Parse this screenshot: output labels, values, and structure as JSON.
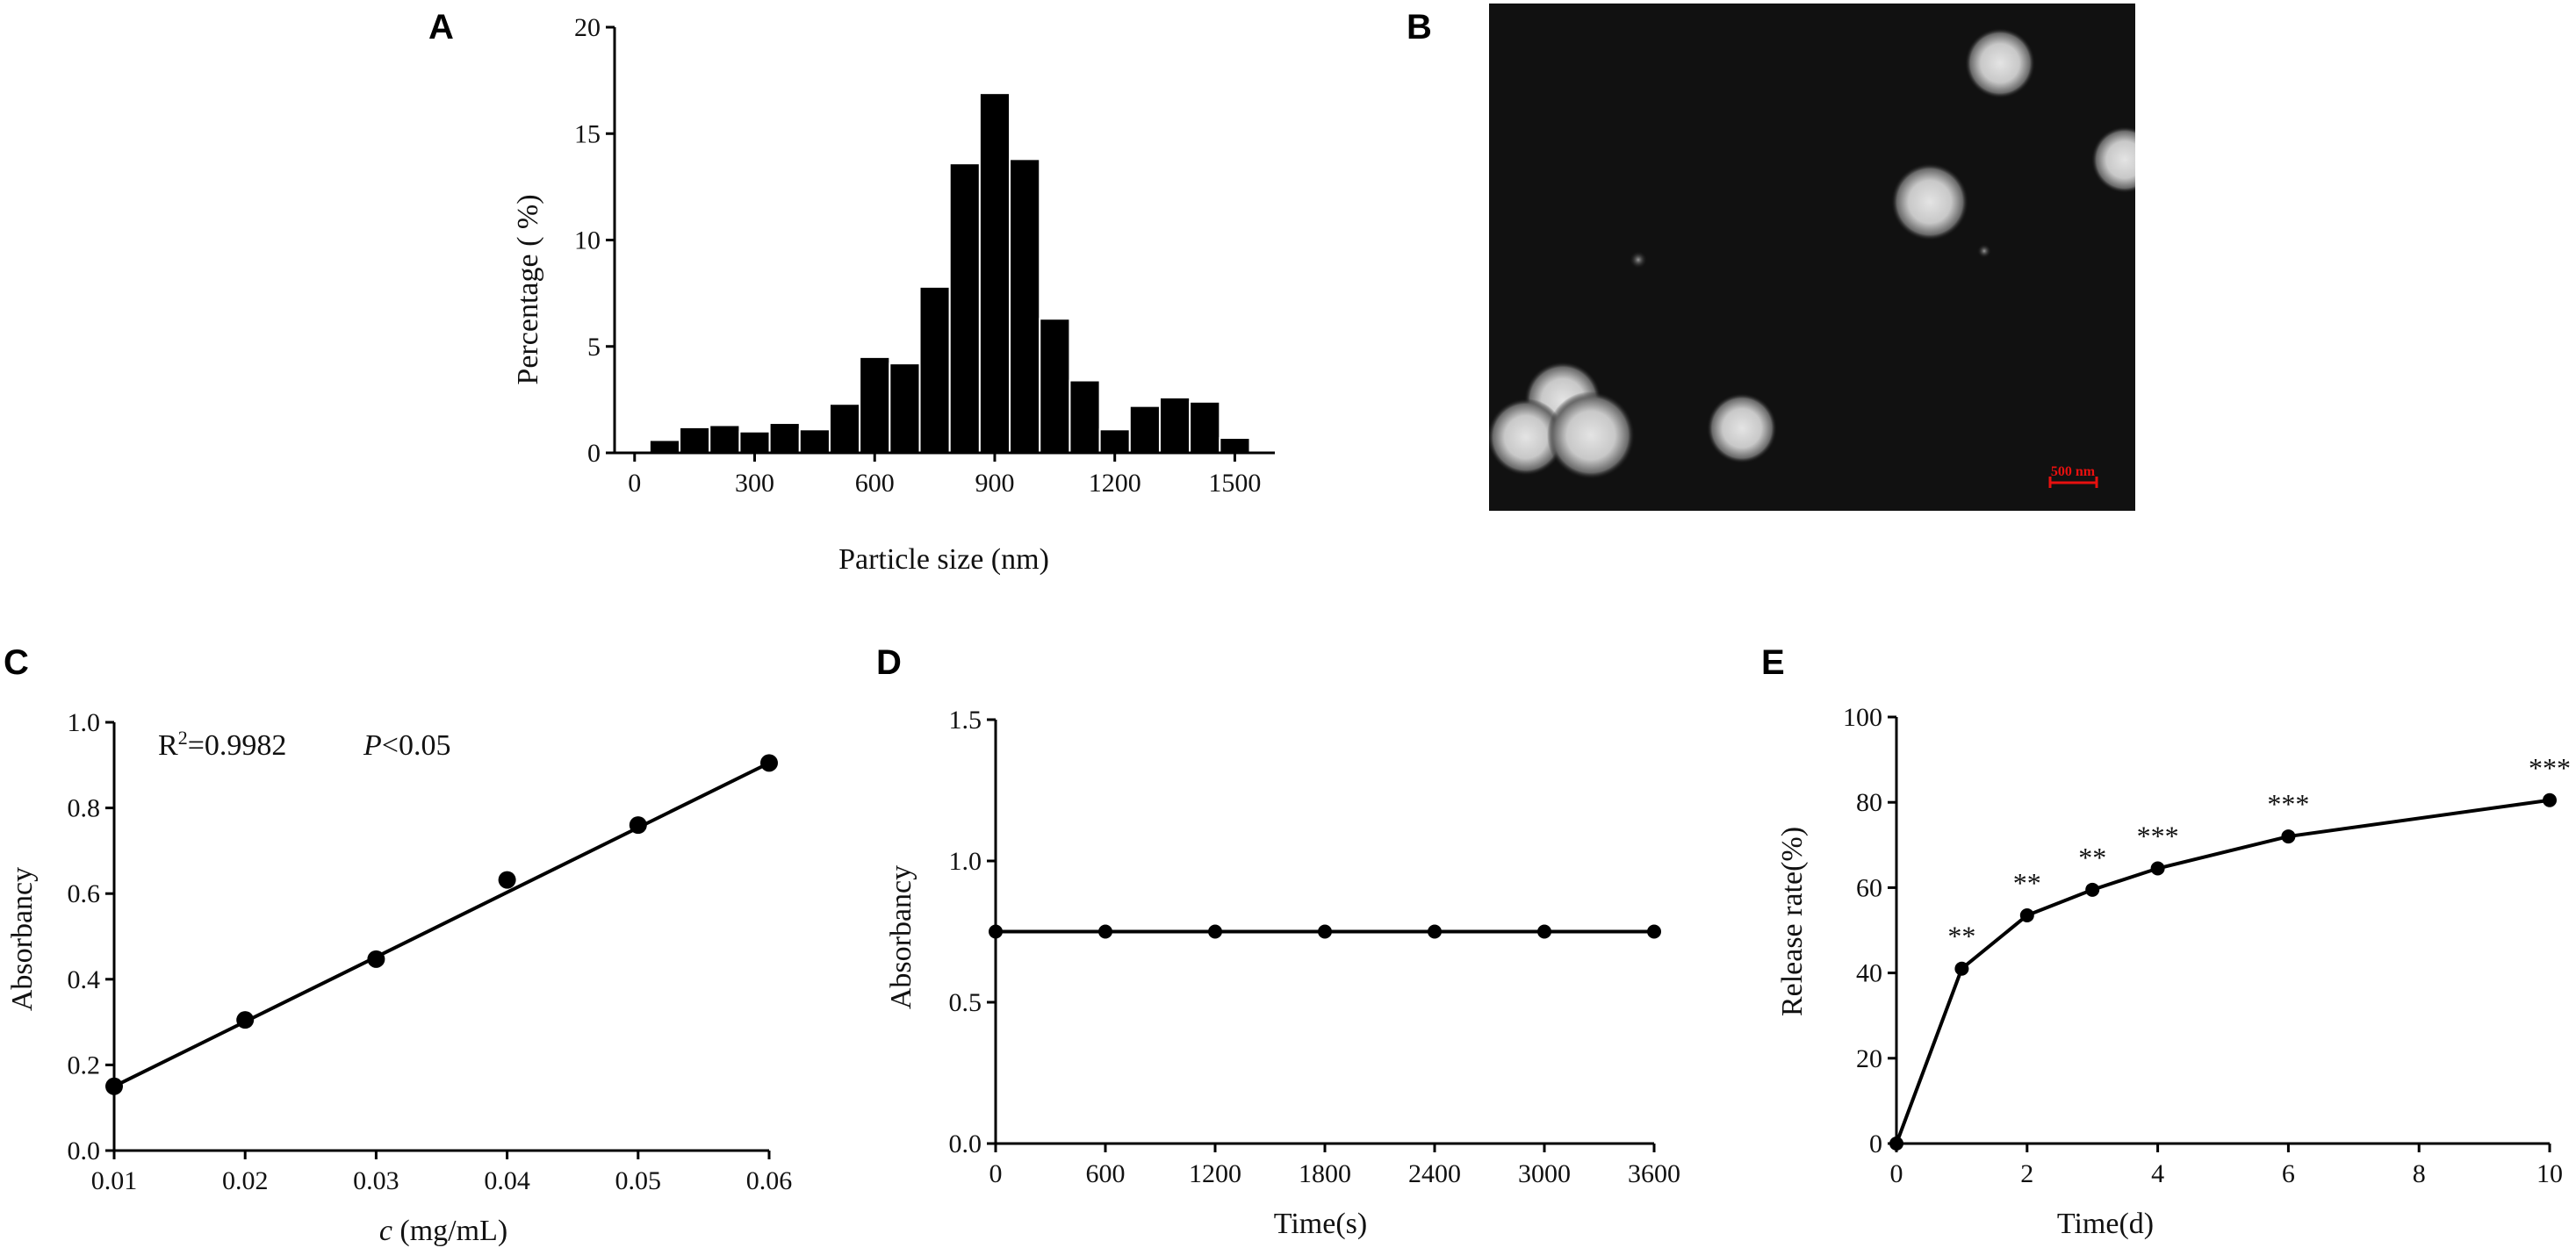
{
  "chart_data": [
    {
      "panel": "A",
      "type": "bar",
      "xlabel": "Particle size (nm)",
      "ylabel": "Percentage ( %)",
      "xlim": [
        -50,
        1600
      ],
      "ylim": [
        0,
        20
      ],
      "xticks": [
        "0",
        "300",
        "600",
        "900",
        "1200",
        "1500"
      ],
      "yticks": [
        "0",
        "5",
        "10",
        "15",
        "20"
      ],
      "bin_width": 75,
      "x": [
        75,
        150,
        225,
        300,
        375,
        450,
        525,
        600,
        675,
        750,
        825,
        900,
        975,
        1050,
        1125,
        1200,
        1275,
        1350,
        1425,
        1500
      ],
      "values": [
        0.6,
        1.2,
        1.3,
        1.0,
        1.4,
        1.1,
        2.3,
        4.5,
        4.2,
        7.8,
        13.6,
        16.9,
        13.8,
        6.3,
        3.4,
        1.1,
        2.2,
        2.6,
        2.4,
        0.7
      ]
    },
    {
      "panel": "B",
      "type": "image",
      "scale_bar_label": "500 nm",
      "scale_bar_color": "#e8100f"
    },
    {
      "panel": "C",
      "type": "scatter",
      "xlabel_italic": "c",
      "xlabel_rest": " (mg/mL)",
      "ylabel": "Absorbancy",
      "annotation_r2_prefix": "R",
      "annotation_r2_sup": "2",
      "annotation_r2_value": "=0.9982",
      "annotation_p_italic": "P",
      "annotation_p_rest": "<0.05",
      "xlim": [
        0.01,
        0.06
      ],
      "ylim": [
        0,
        1.0
      ],
      "xticks": [
        "0.01",
        "0.02",
        "0.03",
        "0.04",
        "0.05",
        "0.06"
      ],
      "yticks": [
        "0.0",
        "0.2",
        "0.4",
        "0.6",
        "0.8",
        "1.0"
      ],
      "x": [
        0.01,
        0.02,
        0.03,
        0.04,
        0.05,
        0.06
      ],
      "y": [
        0.15,
        0.305,
        0.447,
        0.632,
        0.76,
        0.905
      ],
      "fit_line": [
        [
          0.01,
          0.15
        ],
        [
          0.06,
          0.905
        ]
      ]
    },
    {
      "panel": "D",
      "type": "line",
      "xlabel": "Time(s)",
      "ylabel": "Absorbancy",
      "xlim": [
        0,
        3600
      ],
      "ylim": [
        0,
        1.5
      ],
      "xticks": [
        "0",
        "600",
        "1200",
        "1800",
        "2400",
        "3000",
        "3600"
      ],
      "yticks": [
        "0.0",
        "0.5",
        "1.0",
        "1.5"
      ],
      "x": [
        0,
        600,
        1200,
        1800,
        2400,
        3000,
        3600
      ],
      "y": [
        0.75,
        0.75,
        0.75,
        0.75,
        0.75,
        0.75,
        0.75
      ]
    },
    {
      "panel": "E",
      "type": "line",
      "xlabel": "Time(d)",
      "ylabel": "Release rate(%)",
      "xlim": [
        0,
        10
      ],
      "ylim": [
        0,
        100
      ],
      "xticks": [
        "0",
        "2",
        "4",
        "6",
        "8",
        "10"
      ],
      "yticks": [
        "0",
        "20",
        "40",
        "60",
        "80",
        "100"
      ],
      "x": [
        0,
        1,
        2,
        3,
        4,
        6,
        10
      ],
      "y": [
        0,
        41,
        53.5,
        59.5,
        64.5,
        72,
        80.5
      ],
      "significance": [
        "",
        "**",
        "**",
        "**",
        "***",
        "***",
        "***"
      ]
    }
  ]
}
